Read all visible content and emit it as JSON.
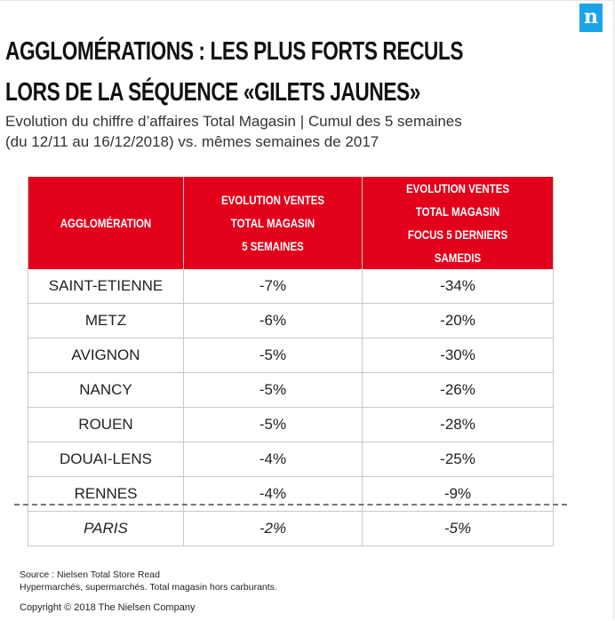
{
  "brand_logo": "n",
  "title_line1": "AGGLOMÉRATIONS : LES PLUS FORTS RECULS",
  "title_line2": "LORS DE LA SÉQUENCE «GILETS JAUNES»",
  "subtitle_line1": "Evolution du chiffre d’affaires Total Magasin | Cumul des 5 semaines",
  "subtitle_line2": "(du 12/11 au 16/12/2018) vs. mêmes semaines de 2017",
  "colors": {
    "header_bg": "#e3001b",
    "logo_bg": "#1aa4e8"
  },
  "chart_data": {
    "type": "table",
    "columns": [
      {
        "lines": [
          "AGGLOMÉRATION"
        ]
      },
      {
        "lines": [
          "EVOLUTION VENTES",
          "TOTAL MAGASIN",
          "5 SEMAINES"
        ]
      },
      {
        "lines": [
          "EVOLUTION VENTES",
          "TOTAL MAGASIN",
          "FOCUS 5 DERNIERS SAMEDIS"
        ]
      }
    ],
    "rows": [
      {
        "city": "SAINT-ETIENNE",
        "five_weeks": "-7%",
        "saturdays": "-34%"
      },
      {
        "city": "METZ",
        "five_weeks": "-6%",
        "saturdays": "-20%"
      },
      {
        "city": "AVIGNON",
        "five_weeks": "-5%",
        "saturdays": "-30%"
      },
      {
        "city": "NANCY",
        "five_weeks": "-5%",
        "saturdays": "-26%"
      },
      {
        "city": "ROUEN",
        "five_weeks": "-5%",
        "saturdays": "-28%"
      },
      {
        "city": "DOUAI-LENS",
        "five_weeks": "-4%",
        "saturdays": "-25%"
      },
      {
        "city": "RENNES",
        "five_weeks": "-4%",
        "saturdays": "-9%"
      }
    ],
    "reference_row": {
      "city": "PARIS",
      "five_weeks": "-2%",
      "saturdays": "-5%"
    }
  },
  "source_line1": "Source : Nielsen Total Store Read",
  "source_line2": "Hypermarchés, supermarchés. Total magasin hors carburants.",
  "copyright": "Copyright © 2018 The Nielsen Company"
}
